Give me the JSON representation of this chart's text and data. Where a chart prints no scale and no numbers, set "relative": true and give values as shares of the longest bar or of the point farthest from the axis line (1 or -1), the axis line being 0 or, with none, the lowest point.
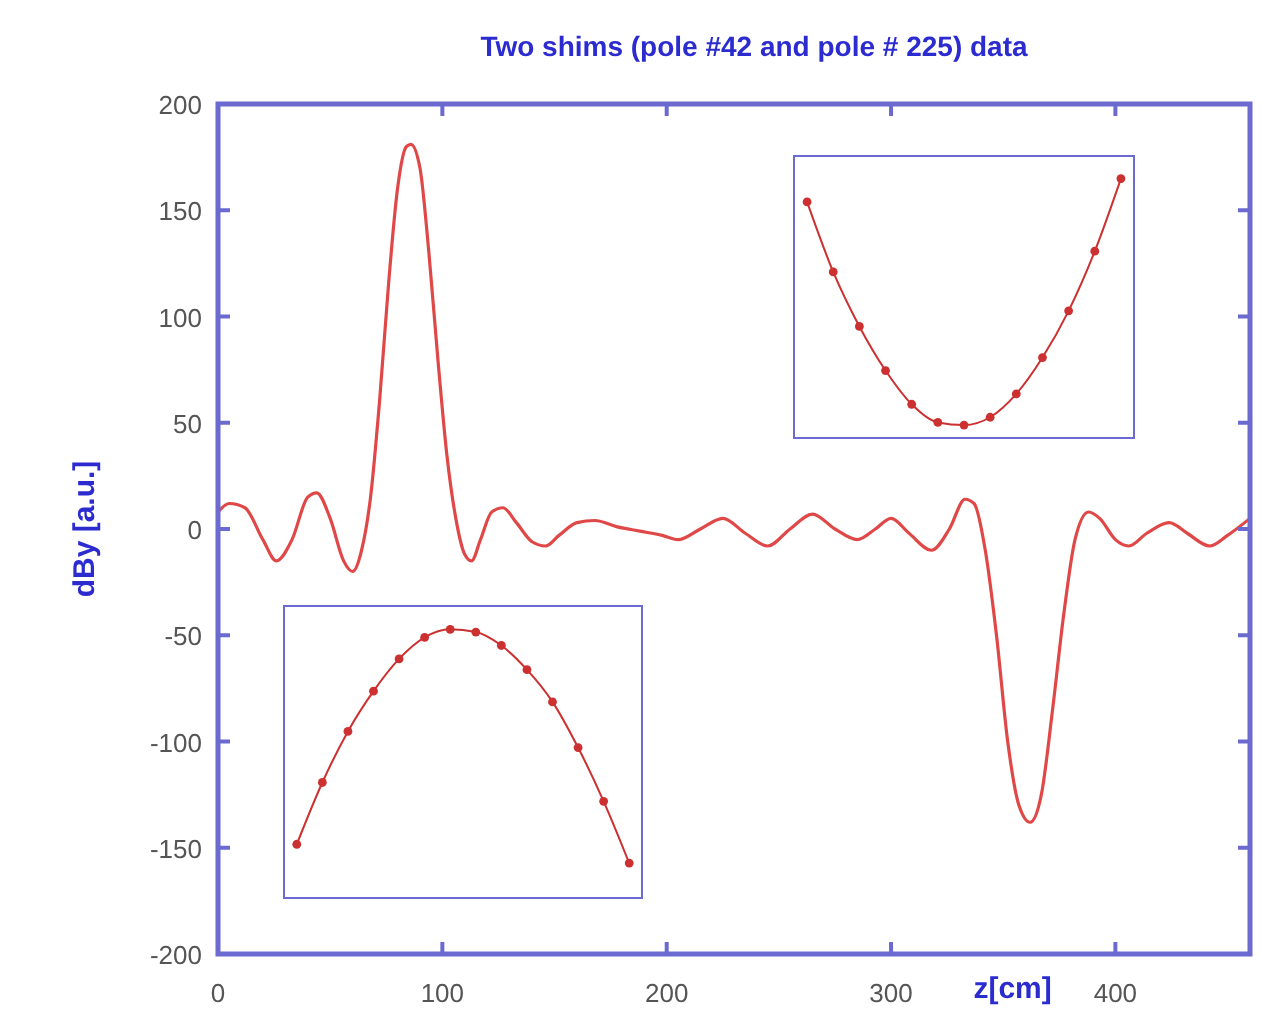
{
  "chart_data": [
    {
      "type": "line",
      "title": "Two shims (pole #42 and pole # 225) data",
      "xlabel": "z[cm]",
      "ylabel": "dBy [a.u.]",
      "xlim": [
        0,
        460
      ],
      "ylim": [
        -200,
        200
      ],
      "xticks": [
        0,
        100,
        200,
        300,
        400
      ],
      "yticks": [
        -200,
        -150,
        -100,
        -50,
        0,
        50,
        100,
        150,
        200
      ],
      "grid": false,
      "marker": "none",
      "line_style": "solid",
      "series": [
        {
          "color": "#e04848",
          "x": [
            0,
            5,
            12,
            20,
            26,
            33,
            40,
            44,
            50,
            56,
            60,
            64,
            68,
            72,
            76,
            80,
            84,
            86,
            90,
            94,
            98,
            102,
            106,
            110,
            113,
            117,
            122,
            127,
            133,
            140,
            146,
            152,
            160,
            168,
            178,
            188,
            198,
            205,
            215,
            225,
            235,
            245,
            255,
            265,
            275,
            285,
            293,
            300,
            308,
            318,
            326,
            333,
            337,
            342,
            347,
            352,
            357,
            362,
            367,
            372,
            377,
            382,
            388,
            393,
            400,
            406,
            414,
            424,
            432,
            442,
            450,
            460
          ],
          "values": [
            8,
            12,
            10,
            -5,
            -15,
            -5,
            15,
            17,
            5,
            -15,
            -20,
            -10,
            15,
            60,
            115,
            160,
            180,
            181,
            170,
            130,
            80,
            35,
            5,
            -12,
            -15,
            -5,
            8,
            10,
            3,
            -6,
            -8,
            -3,
            3,
            4,
            1,
            -1,
            -3,
            -5,
            0,
            5,
            -2,
            -8,
            0,
            7,
            0,
            -5,
            0,
            5,
            -2,
            -10,
            0,
            14,
            12,
            -10,
            -50,
            -100,
            -130,
            -138,
            -125,
            -85,
            -40,
            -5,
            8,
            5,
            -5,
            -8,
            -2,
            3,
            -2,
            -8,
            -3,
            5
          ]
        }
      ]
    },
    {
      "type": "line",
      "relative": true,
      "marker": "circle",
      "categories": [
        null,
        null,
        null,
        null,
        null,
        null,
        null,
        null,
        null,
        null,
        null,
        null,
        null
      ],
      "series": [
        {
          "color": "#cc3030",
          "values": [
            0.91,
            0.64,
            0.43,
            0.26,
            0.13,
            0.06,
            0.05,
            0.08,
            0.17,
            0.31,
            0.49,
            0.72,
            1
          ]
        }
      ]
    },
    {
      "type": "line",
      "relative": true,
      "marker": "circle",
      "categories": [
        null,
        null,
        null,
        null,
        null,
        null,
        null,
        null,
        null,
        null,
        null,
        null,
        null,
        null
      ],
      "series": [
        {
          "color": "#cc3030",
          "values": [
            0.2,
            0.43,
            0.62,
            0.77,
            0.89,
            0.97,
            1,
            0.99,
            0.94,
            0.85,
            0.73,
            0.56,
            0.36,
            0.13
          ]
        }
      ]
    }
  ]
}
